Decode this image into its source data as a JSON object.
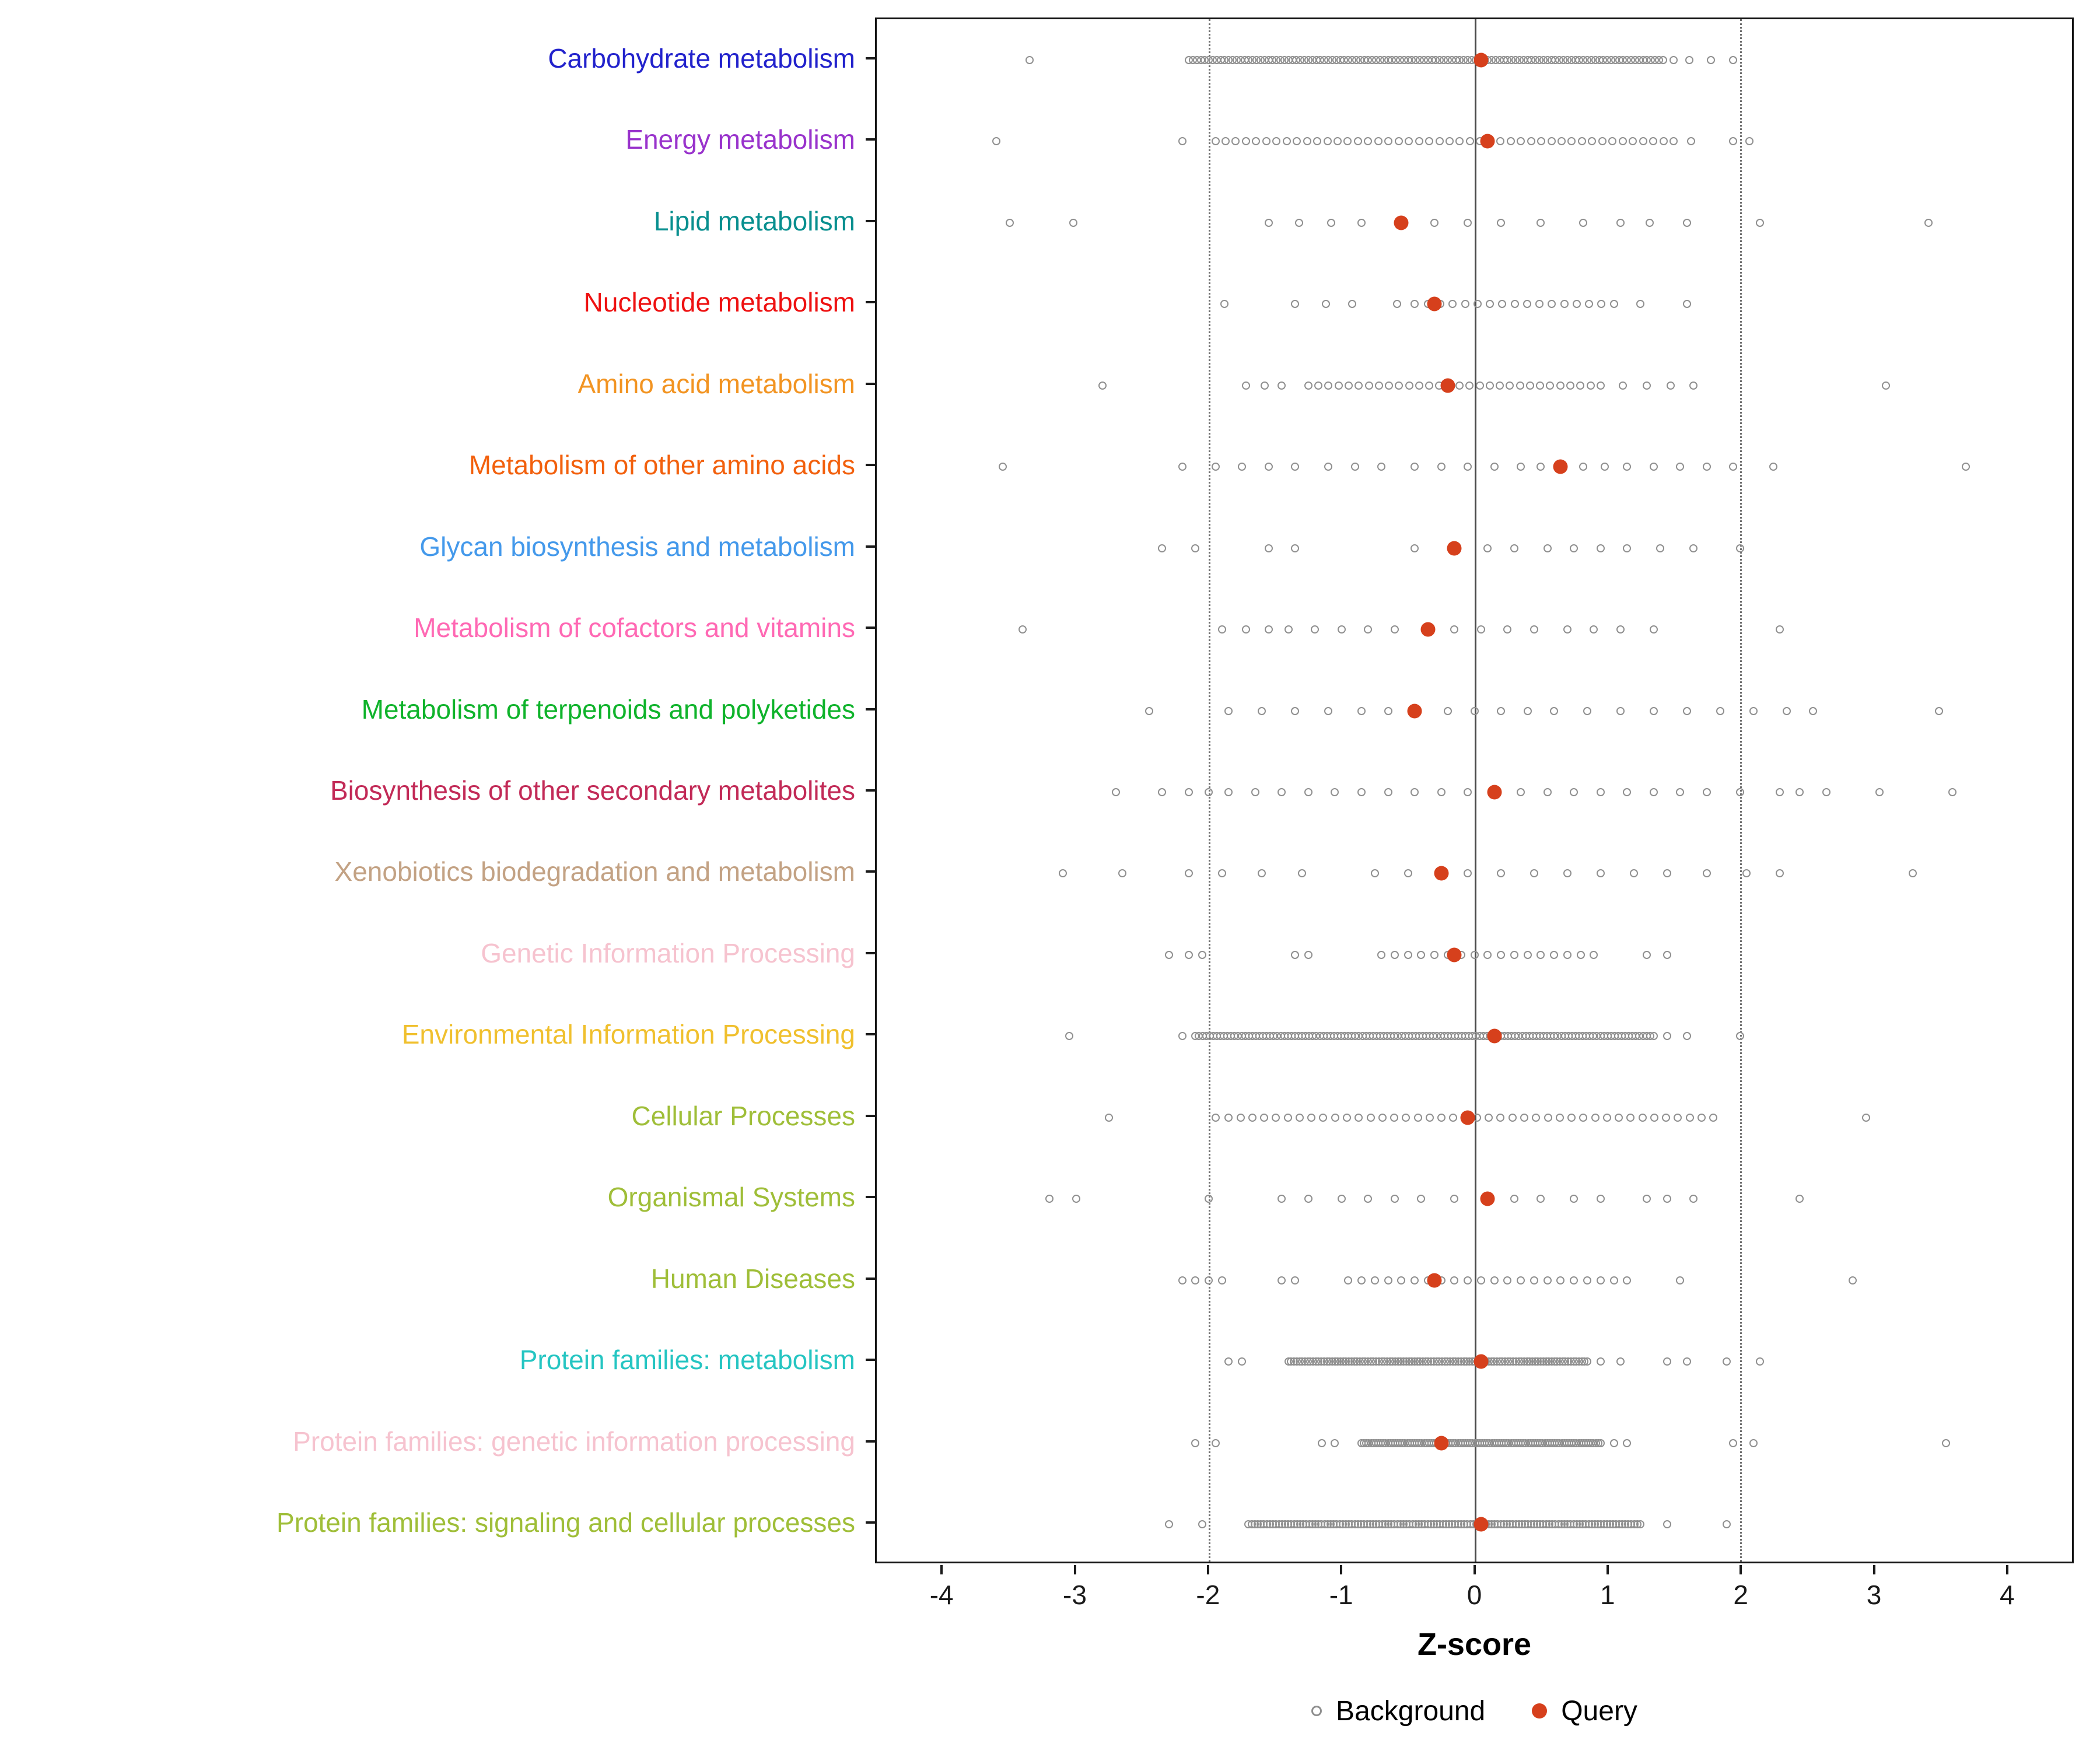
{
  "legend": {
    "background_label": "Background",
    "query_label": "Query"
  },
  "chart_data": {
    "type": "scatter",
    "subtype": "strip-plot",
    "title": "",
    "xlabel": "Z-score",
    "ylabel": "",
    "xlim": [
      -4.5,
      4.5
    ],
    "x_ticks": [
      -4,
      -3,
      -2,
      -1,
      0,
      1,
      2,
      3,
      4
    ],
    "grid": false,
    "legend_position": "bottom",
    "reference_lines": {
      "solid": [
        0
      ],
      "dotted": [
        -2,
        2
      ]
    },
    "colors": {
      "query_marker": "#d6401c",
      "background_marker_stroke": "#8f8f8f",
      "zero_line": "#4a4a4a",
      "dotted_line": "#6e6e6e",
      "panel_border": "#141414",
      "panel_background": "#ffffff"
    },
    "categories": [
      {
        "label": "Carbohydrate metabolism",
        "color": "#2222CC",
        "query": 0.05,
        "background": [
          -3.35,
          1.5,
          1.62,
          1.78,
          1.95
        ],
        "bands": [
          [
            -2.15,
            1.42,
            120
          ]
        ]
      },
      {
        "label": "Energy metabolism",
        "color": "#9933CC",
        "query": 0.1,
        "background": [
          -3.6,
          -2.2,
          1.63,
          1.95,
          2.07
        ],
        "bands": [
          [
            -1.95,
            1.5,
            46
          ]
        ]
      },
      {
        "label": "Lipid metabolism",
        "color": "#088F8F",
        "query": -0.55,
        "background": [
          -3.5,
          -3.02,
          -1.55,
          -1.32,
          -1.08,
          -0.85,
          -0.3,
          -0.05,
          0.2,
          0.5,
          0.82,
          1.1,
          1.32,
          1.6,
          2.15,
          3.42
        ],
        "bands": []
      },
      {
        "label": "Nucleotide metabolism",
        "color": "#EE1111",
        "query": -0.3,
        "background": [
          -1.88,
          -1.35,
          -1.12,
          -0.92,
          -0.58,
          -0.45,
          1.25,
          1.6
        ],
        "bands": [
          [
            -0.35,
            1.05,
            16
          ]
        ]
      },
      {
        "label": "Amino acid metabolism",
        "color": "#F29422",
        "query": -0.2,
        "background": [
          -2.8,
          -1.72,
          -1.58,
          -1.45,
          1.12,
          1.3,
          1.48,
          1.65,
          3.1
        ],
        "bands": [
          [
            -1.25,
            0.95,
            30
          ]
        ]
      },
      {
        "label": "Metabolism of other amino acids",
        "color": "#F2600D",
        "query": 0.65,
        "background": [
          -3.55,
          -2.2,
          -1.95,
          -1.75,
          -1.55,
          -1.35,
          -1.1,
          -0.9,
          -0.7,
          -0.45,
          -0.25,
          -0.05,
          0.15,
          0.35,
          0.5,
          0.82,
          0.98,
          1.15,
          1.35,
          1.55,
          1.75,
          1.95,
          2.25,
          3.7
        ],
        "bands": []
      },
      {
        "label": "Glycan biosynthesis and metabolism",
        "color": "#4499EB",
        "query": -0.15,
        "background": [
          -2.35,
          -2.1,
          -1.55,
          -1.35,
          -0.45,
          0.1,
          0.3,
          0.55,
          0.75,
          0.95,
          1.15,
          1.4,
          1.65,
          2.0
        ],
        "bands": []
      },
      {
        "label": "Metabolism of cofactors and vitamins",
        "color": "#FF69B4",
        "query": -0.35,
        "background": [
          -3.4,
          -1.9,
          -1.72,
          -1.55,
          -1.4,
          -1.2,
          -1.0,
          -0.8,
          -0.6,
          -0.15,
          0.05,
          0.25,
          0.45,
          0.7,
          0.9,
          1.1,
          1.35,
          2.3
        ],
        "bands": []
      },
      {
        "label": "Metabolism of terpenoids and polyketides",
        "color": "#0FB32B",
        "query": -0.45,
        "background": [
          -2.45,
          -1.85,
          -1.6,
          -1.35,
          -1.1,
          -0.85,
          -0.65,
          -0.2,
          0.0,
          0.2,
          0.4,
          0.6,
          0.85,
          1.1,
          1.35,
          1.6,
          1.85,
          2.1,
          2.35,
          2.55,
          3.5
        ],
        "bands": []
      },
      {
        "label": "Biosynthesis of other secondary metabolites",
        "color": "#C22A57",
        "query": 0.15,
        "background": [
          -2.7,
          -2.35,
          -2.15,
          -2.0,
          -1.85,
          -1.65,
          -1.45,
          -1.25,
          -1.05,
          -0.85,
          -0.65,
          -0.45,
          -0.25,
          -0.05,
          0.35,
          0.55,
          0.75,
          0.95,
          1.15,
          1.35,
          1.55,
          1.75,
          2.0,
          2.3,
          2.45,
          2.65,
          3.05,
          3.6
        ],
        "bands": []
      },
      {
        "label": "Xenobiotics biodegradation and metabolism",
        "color": "#C3A284",
        "query": -0.25,
        "background": [
          -3.1,
          -2.65,
          -2.15,
          -1.9,
          -1.6,
          -1.3,
          -0.75,
          -0.5,
          -0.05,
          0.2,
          0.45,
          0.7,
          0.95,
          1.2,
          1.45,
          1.75,
          2.05,
          2.3,
          3.3
        ],
        "bands": []
      },
      {
        "label": "Genetic Information Processing",
        "color": "#F6C3CF",
        "query": -0.15,
        "background": [
          -2.3,
          -2.15,
          -2.05,
          -1.35,
          -1.25,
          -0.7,
          -0.6,
          1.3,
          1.45
        ],
        "bands": [
          [
            -0.5,
            0.9,
            15
          ]
        ]
      },
      {
        "label": "Environmental Information Processing",
        "color": "#F0C02E",
        "query": 0.15,
        "background": [
          -3.05,
          -2.2,
          1.45,
          1.6,
          2.0
        ],
        "bands": [
          [
            -2.1,
            1.35,
            130
          ]
        ]
      },
      {
        "label": "Cellular Processes",
        "color": "#9FBE38",
        "query": -0.05,
        "background": [
          -2.75,
          -1.95,
          2.95
        ],
        "bands": [
          [
            -1.85,
            1.8,
            42
          ]
        ]
      },
      {
        "label": "Organismal Systems",
        "color": "#9FBE38",
        "query": 0.1,
        "background": [
          -3.2,
          -3.0,
          -2.0,
          -1.45,
          -1.25,
          -1.0,
          -0.8,
          -0.6,
          -0.4,
          -0.15,
          0.3,
          0.5,
          0.75,
          0.95,
          1.3,
          1.45,
          1.65,
          2.45
        ],
        "bands": []
      },
      {
        "label": "Human Diseases",
        "color": "#9FBE38",
        "query": -0.3,
        "background": [
          -2.2,
          -2.1,
          -2.0,
          -1.9,
          -1.45,
          -1.35,
          1.55,
          2.85
        ],
        "bands": [
          [
            -0.95,
            1.15,
            22
          ]
        ]
      },
      {
        "label": "Protein families: metabolism",
        "color": "#25C5C2",
        "query": 0.05,
        "background": [
          -1.85,
          -1.75,
          0.95,
          1.1,
          1.45,
          1.6,
          1.9,
          2.15
        ],
        "bands": [
          [
            -1.4,
            0.85,
            110
          ]
        ]
      },
      {
        "label": "Protein families: genetic information processing",
        "color": "#F6C3CF",
        "query": -0.25,
        "background": [
          -2.1,
          -1.95,
          -1.15,
          -1.05,
          1.05,
          1.15,
          1.95,
          2.1,
          3.55
        ],
        "bands": [
          [
            -0.85,
            0.95,
            100
          ]
        ]
      },
      {
        "label": "Protein families: signaling and cellular processes",
        "color": "#9FBE38",
        "query": 0.05,
        "background": [
          -2.3,
          -2.05,
          1.45,
          1.9
        ],
        "bands": [
          [
            -1.7,
            1.25,
            130
          ]
        ]
      }
    ]
  }
}
